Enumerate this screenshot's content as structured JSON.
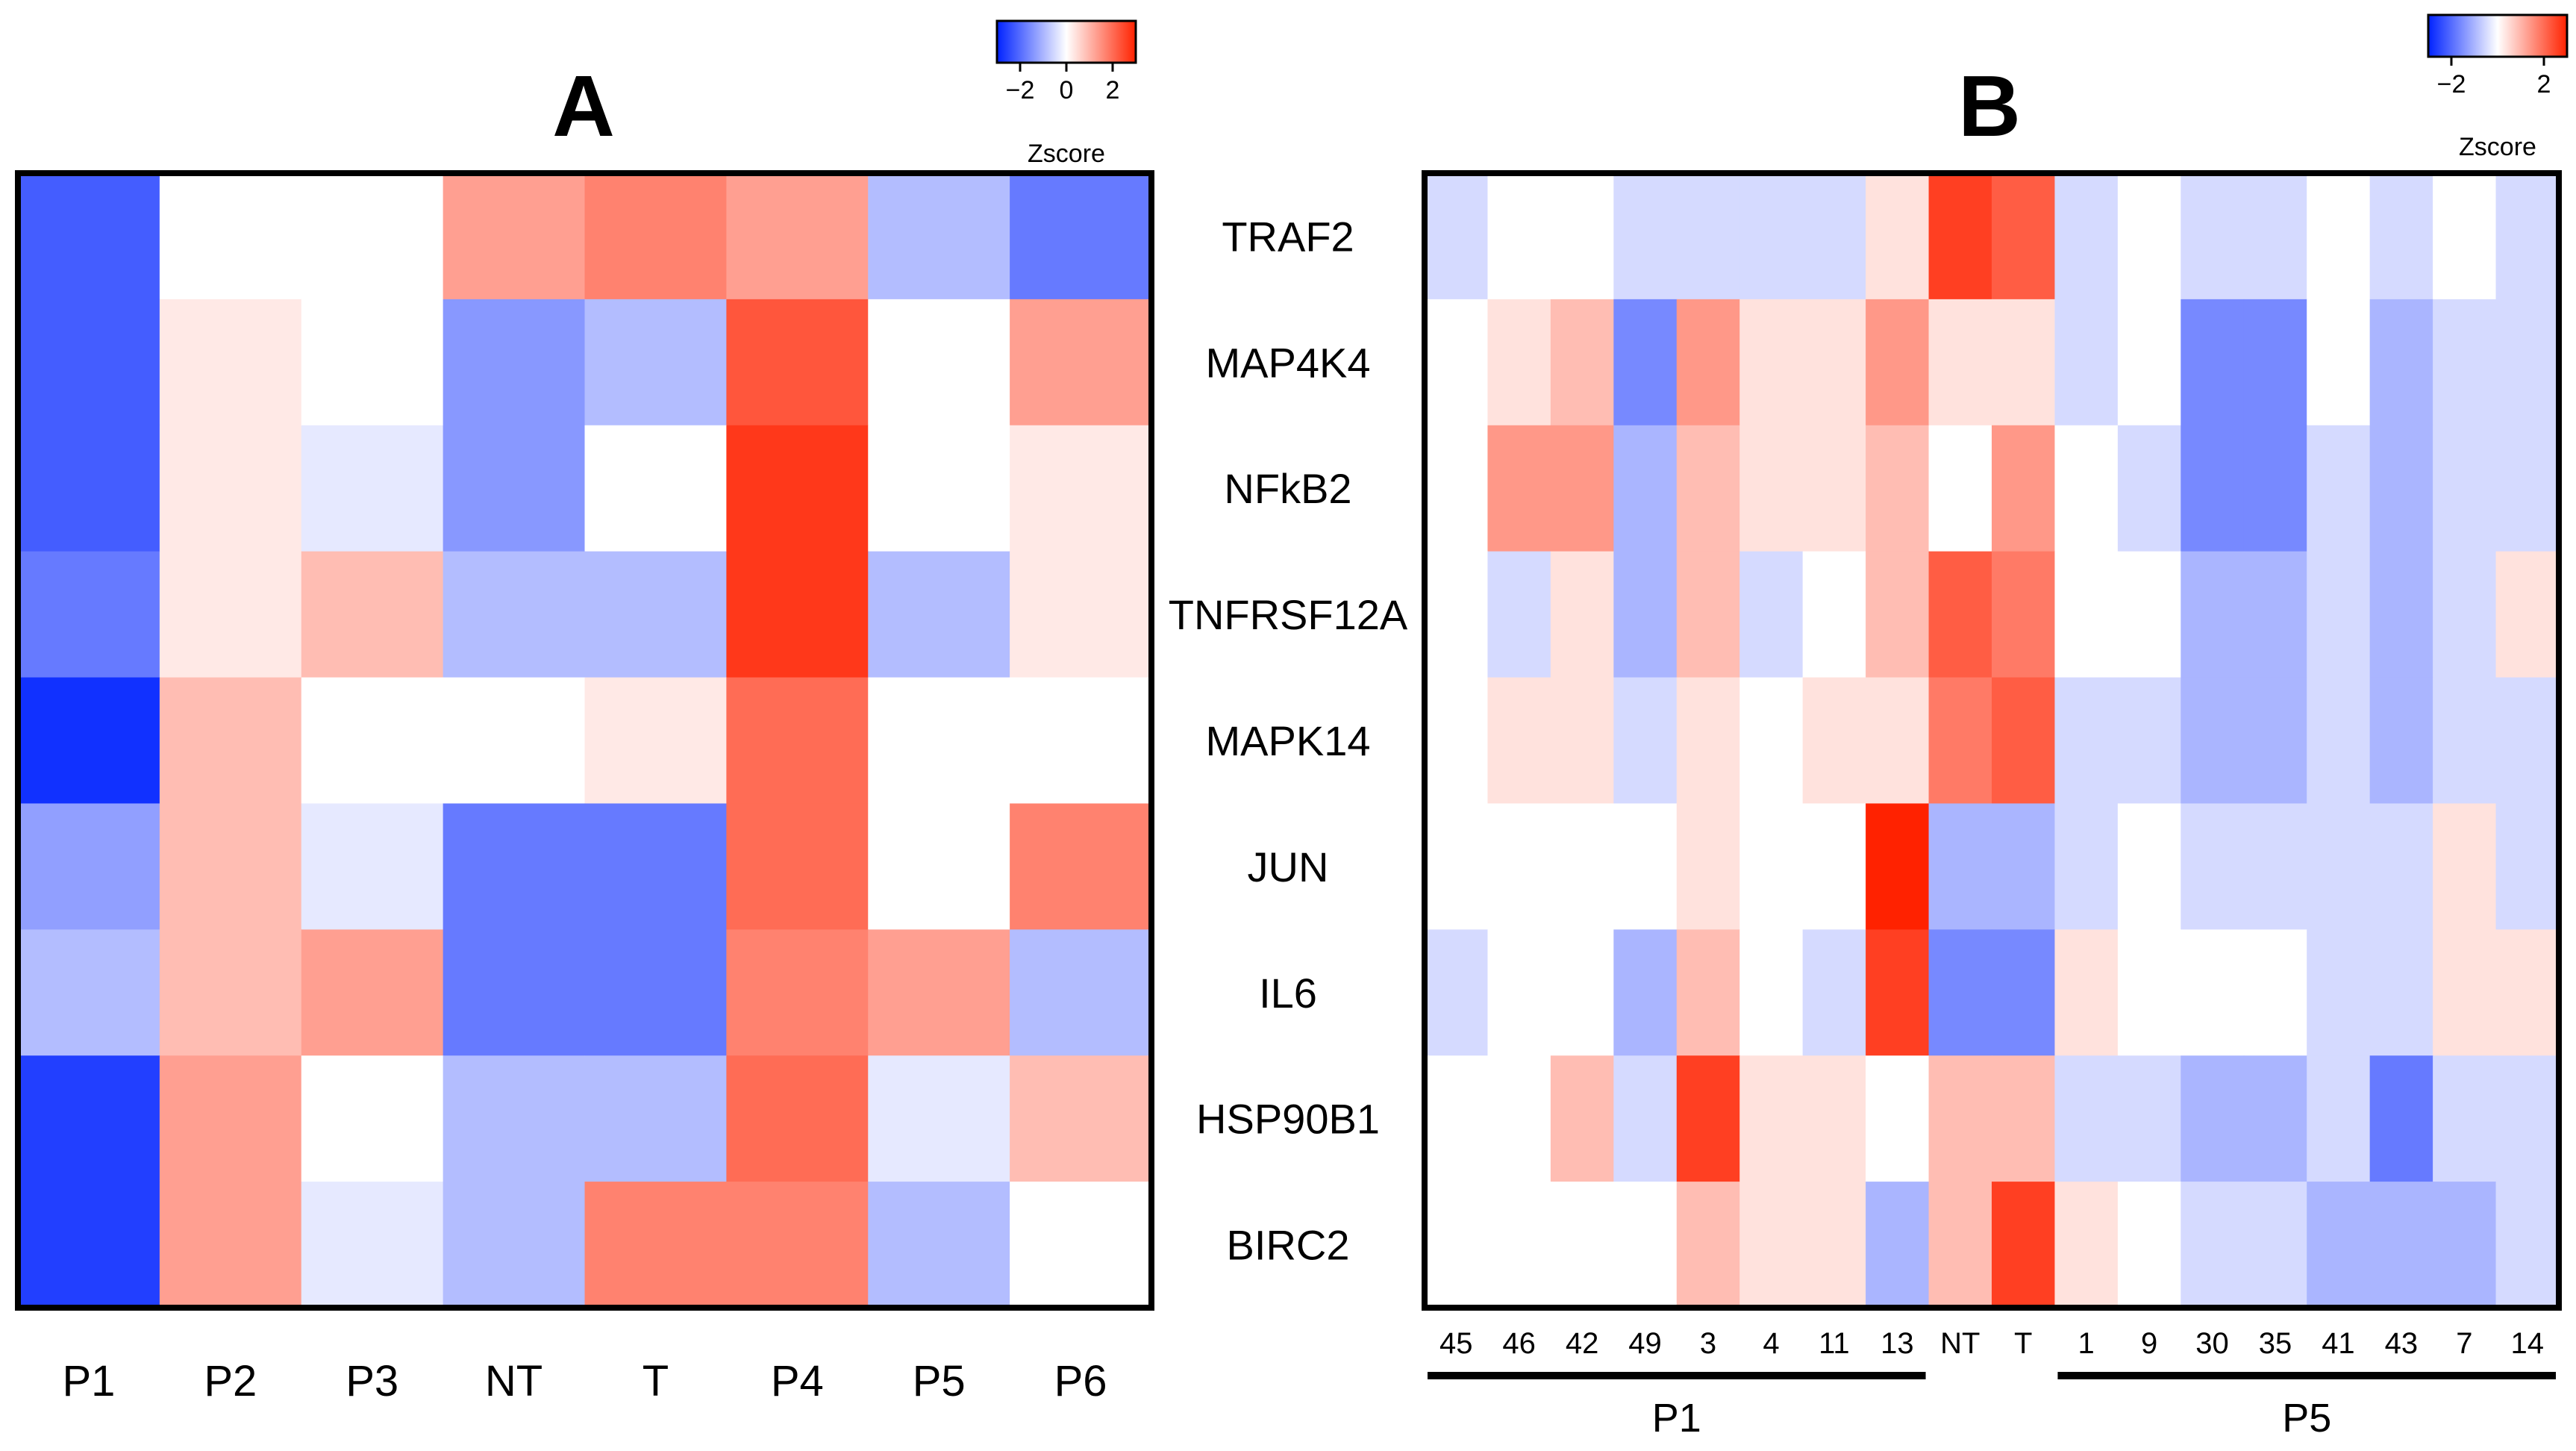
{
  "chart_data": [
    {
      "type": "heatmap",
      "panel_label": "A",
      "rows": [
        "TRAF2",
        "MAP4K4",
        "NFkB2",
        "TNFRSF12A",
        "MAPK14",
        "JUN",
        "IL6",
        "HSP90B1",
        "BIRC2"
      ],
      "columns": [
        "P1",
        "P2",
        "P3",
        "NT",
        "T",
        "P4",
        "P5",
        "P6"
      ],
      "values": [
        [
          -2.2,
          0.0,
          0.0,
          1.3,
          1.7,
          1.3,
          -0.9,
          -1.8
        ],
        [
          -2.2,
          0.3,
          0.0,
          -1.4,
          -0.9,
          2.3,
          0.0,
          1.3
        ],
        [
          -2.2,
          0.3,
          -0.3,
          -1.4,
          0.0,
          2.7,
          0.0,
          0.3
        ],
        [
          -1.8,
          0.3,
          0.9,
          -0.9,
          -0.9,
          2.7,
          -0.9,
          0.3
        ],
        [
          -2.8,
          0.9,
          0.0,
          0.0,
          0.3,
          2.0,
          0.0,
          0.0
        ],
        [
          -1.3,
          0.9,
          -0.3,
          -1.8,
          -1.8,
          2.0,
          0.0,
          1.7
        ],
        [
          -0.9,
          0.9,
          1.3,
          -1.8,
          -1.8,
          1.7,
          1.3,
          -0.9
        ],
        [
          -2.6,
          1.3,
          0.0,
          -0.9,
          -0.9,
          2.0,
          -0.3,
          0.9
        ],
        [
          -2.6,
          1.3,
          -0.3,
          -0.9,
          1.7,
          1.7,
          -0.9,
          0.0
        ]
      ],
      "color_scale": {
        "low": "#0022ff",
        "mid": "#ffffff",
        "high": "#ff2200",
        "range": [
          -3,
          3
        ]
      },
      "legend": {
        "title": "Zscore",
        "ticks": [
          "−2",
          "0",
          "2"
        ],
        "tick_values": [
          -2,
          0,
          2
        ],
        "position": "top-right"
      }
    },
    {
      "type": "heatmap",
      "panel_label": "B",
      "rows": [
        "TRAF2",
        "MAP4K4",
        "NFkB2",
        "TNFRSF12A",
        "MAPK14",
        "JUN",
        "IL6",
        "HSP90B1",
        "BIRC2"
      ],
      "columns": [
        "45",
        "46",
        "42",
        "49",
        "3",
        "4",
        "11",
        "13",
        "NT",
        "T",
        "1",
        "9",
        "30",
        "35",
        "41",
        "43",
        "7",
        "14"
      ],
      "groups": [
        {
          "label": "P1",
          "start": 0,
          "end": 7
        },
        {
          "label": "P5",
          "start": 10,
          "end": 17
        }
      ],
      "values": [
        [
          -0.5,
          0.0,
          0.0,
          -0.5,
          -0.5,
          -0.5,
          -0.5,
          0.4,
          2.6,
          2.2,
          -0.5,
          0.0,
          -0.5,
          -0.5,
          0.0,
          -0.5,
          0.0,
          -0.5
        ],
        [
          0.0,
          0.4,
          0.9,
          -1.6,
          1.4,
          0.4,
          0.4,
          1.4,
          0.4,
          0.4,
          -0.5,
          0.0,
          -1.6,
          -1.6,
          0.0,
          -1.0,
          -0.5,
          -0.5
        ],
        [
          0.0,
          1.4,
          1.4,
          -1.0,
          0.9,
          0.4,
          0.4,
          0.9,
          0.0,
          1.4,
          0.0,
          -0.5,
          -1.6,
          -1.6,
          -0.5,
          -1.0,
          -0.5,
          -0.5
        ],
        [
          0.0,
          -0.5,
          0.4,
          -1.0,
          0.9,
          -0.5,
          0.0,
          0.9,
          2.2,
          1.8,
          0.0,
          0.0,
          -1.0,
          -1.0,
          -0.5,
          -1.0,
          -0.5,
          0.4
        ],
        [
          0.0,
          0.4,
          0.4,
          -0.5,
          0.4,
          0.0,
          0.4,
          0.4,
          1.8,
          2.2,
          -0.5,
          -0.5,
          -1.0,
          -1.0,
          -0.5,
          -1.0,
          -0.5,
          -0.5
        ],
        [
          0.0,
          0.0,
          0.0,
          0.0,
          0.4,
          0.0,
          0.0,
          3.0,
          -1.0,
          -1.0,
          -0.5,
          0.0,
          -0.5,
          -0.5,
          -0.5,
          -0.5,
          0.4,
          -0.5
        ],
        [
          -0.5,
          0.0,
          0.0,
          -1.0,
          0.9,
          0.0,
          -0.5,
          2.6,
          -1.6,
          -1.6,
          0.4,
          0.0,
          0.0,
          0.0,
          -0.5,
          -0.5,
          0.4,
          0.4
        ],
        [
          0.0,
          0.0,
          0.9,
          -0.5,
          2.6,
          0.4,
          0.4,
          0.0,
          0.9,
          0.9,
          -0.5,
          -0.5,
          -1.0,
          -1.0,
          -0.5,
          -1.8,
          -0.5,
          -0.5
        ],
        [
          0.0,
          0.0,
          0.0,
          0.0,
          0.9,
          0.4,
          0.4,
          -1.0,
          0.9,
          2.6,
          0.4,
          0.0,
          -0.5,
          -0.5,
          -1.0,
          -1.0,
          -1.0,
          -0.5
        ]
      ],
      "color_scale": {
        "low": "#0022ff",
        "mid": "#ffffff",
        "high": "#ff2200",
        "range": [
          -3,
          3
        ]
      },
      "legend": {
        "title": "Zscore",
        "ticks": [
          "−2",
          "2"
        ],
        "tick_values": [
          -2,
          2
        ],
        "position": "top-right"
      }
    }
  ]
}
